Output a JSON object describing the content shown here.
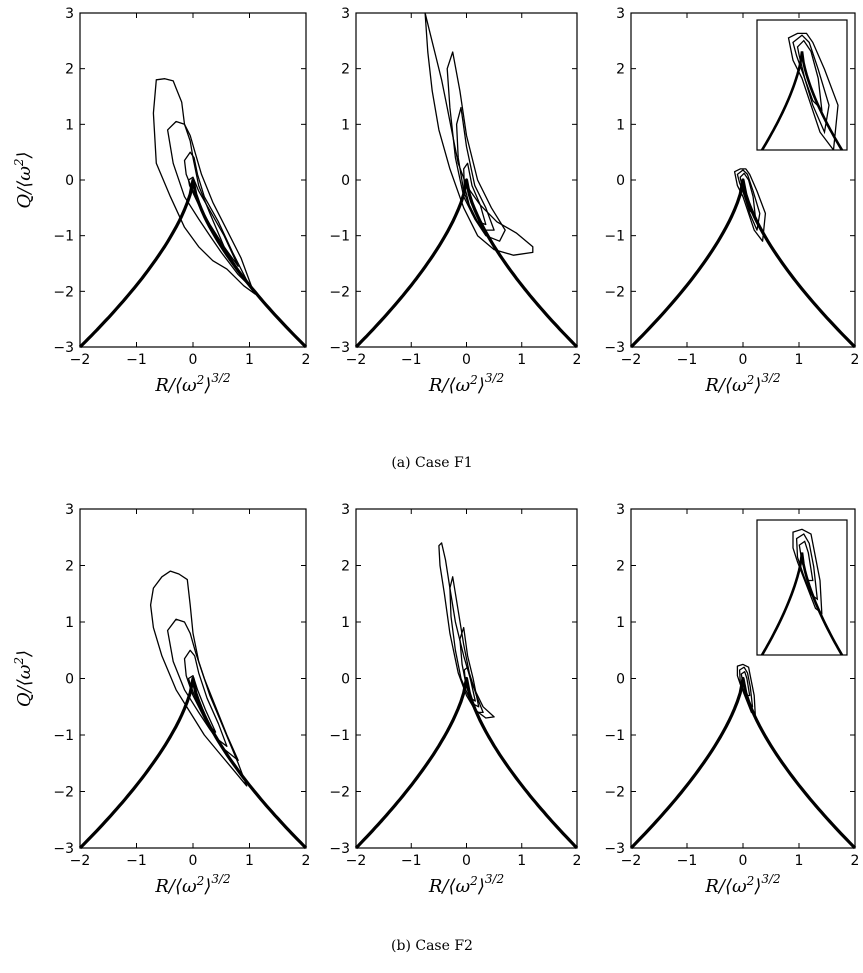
{
  "captions": {
    "a": "(a) Case F1",
    "b": "(b) Case F2"
  },
  "axes": {
    "xlabel_main": "R/⟨ω",
    "xlabel_sup": "2",
    "xlabel_close": "⟩",
    "xlabel_exp": "3/2",
    "ylabel_main": "Q/⟨ω",
    "ylabel_sup": "2",
    "ylabel_close": "⟩",
    "xlim": [
      -2,
      2
    ],
    "ylim": [
      -3,
      3
    ],
    "xticks": [
      "−2",
      "−1",
      "0",
      "1",
      "2"
    ],
    "yticks": [
      "3",
      "2",
      "1",
      "0",
      "−1",
      "−2",
      "−3"
    ]
  },
  "colors": {
    "line": "#000000",
    "background": "#ffffff"
  },
  "chart_data": [
    {
      "id": "a1",
      "type": "line",
      "curves": [
        {
          "kind": "vieillefosse",
          "x": [
            -2,
            0,
            2
          ],
          "y": [
            -3,
            0,
            -3
          ]
        },
        {
          "kind": "contour",
          "level": "outer",
          "x": [
            -0.65,
            -0.5,
            -0.35,
            -0.3,
            -0.2,
            -0.15,
            -0.05,
            0.0,
            0.1,
            0.3,
            0.55,
            0.85,
            1.1,
            0.9,
            0.6,
            0.35,
            0.1,
            -0.15,
            -0.4,
            -0.65,
            -0.7,
            -0.65
          ],
          "y": [
            1.8,
            1.82,
            1.78,
            1.65,
            1.4,
            1.0,
            0.7,
            0.4,
            -0.1,
            -0.6,
            -1.2,
            -1.7,
            -2.05,
            -1.9,
            -1.6,
            -1.45,
            -1.2,
            -0.85,
            -0.3,
            0.3,
            1.2,
            1.8
          ]
        },
        {
          "kind": "contour",
          "level": "middle",
          "x": [
            -0.45,
            -0.3,
            -0.15,
            -0.05,
            0.05,
            0.15,
            0.35,
            0.6,
            0.85,
            1.05,
            0.8,
            0.5,
            0.3,
            0.1,
            -0.15,
            -0.35,
            -0.45
          ],
          "y": [
            0.9,
            1.05,
            1.0,
            0.8,
            0.45,
            0.1,
            -0.4,
            -0.9,
            -1.4,
            -1.95,
            -1.7,
            -1.3,
            -1.0,
            -0.7,
            -0.3,
            0.3,
            0.9
          ]
        },
        {
          "kind": "contour",
          "level": "inner",
          "x": [
            -0.15,
            -0.05,
            0.02,
            0.08,
            0.2,
            0.45,
            0.7,
            1.0,
            0.75,
            0.45,
            0.2,
            0.0,
            -0.12,
            -0.15
          ],
          "y": [
            0.35,
            0.5,
            0.4,
            0.1,
            -0.3,
            -0.75,
            -1.3,
            -1.9,
            -1.55,
            -1.1,
            -0.65,
            -0.2,
            0.1,
            0.35
          ]
        },
        {
          "kind": "contour",
          "level": "core",
          "x": [
            -0.08,
            0.0,
            0.1,
            0.3,
            0.55,
            0.8,
            0.55,
            0.3,
            0.08,
            -0.06,
            -0.08
          ],
          "y": [
            0.0,
            0.05,
            -0.2,
            -0.55,
            -1.0,
            -1.55,
            -1.2,
            -0.8,
            -0.4,
            -0.1,
            0.0
          ]
        }
      ]
    },
    {
      "id": "a2",
      "type": "line",
      "curves": [
        {
          "kind": "vieillefosse",
          "x": [
            -2,
            0,
            2
          ],
          "y": [
            -3,
            0,
            -3
          ]
        },
        {
          "kind": "contour",
          "level": "outer",
          "x": [
            -0.75,
            -0.65,
            -0.55,
            -0.45,
            -0.35,
            -0.25,
            -0.15,
            0.0,
            0.25,
            0.55,
            0.9,
            1.2,
            1.2,
            0.85,
            0.5,
            0.2,
            -0.05,
            -0.3,
            -0.5,
            -0.62,
            -0.7,
            -0.75
          ],
          "y": [
            3.0,
            2.6,
            2.2,
            1.8,
            1.3,
            0.8,
            0.3,
            -0.1,
            -0.45,
            -0.75,
            -0.95,
            -1.2,
            -1.3,
            -1.35,
            -1.25,
            -1.0,
            -0.5,
            0.2,
            0.9,
            1.6,
            2.3,
            3.0
          ]
        },
        {
          "kind": "contour",
          "level": "middle",
          "x": [
            -0.35,
            -0.25,
            -0.12,
            0.0,
            0.2,
            0.45,
            0.7,
            0.6,
            0.35,
            0.15,
            -0.05,
            -0.2,
            -0.3,
            -0.35
          ],
          "y": [
            2.0,
            2.3,
            1.6,
            0.8,
            0.0,
            -0.5,
            -0.9,
            -1.1,
            -1.0,
            -0.7,
            -0.3,
            0.4,
            1.3,
            2.0
          ]
        },
        {
          "kind": "contour",
          "level": "inner",
          "x": [
            -0.18,
            -0.1,
            0.0,
            0.15,
            0.35,
            0.5,
            0.3,
            0.1,
            -0.05,
            -0.15,
            -0.18
          ],
          "y": [
            1.0,
            1.3,
            0.6,
            -0.1,
            -0.5,
            -0.9,
            -0.9,
            -0.6,
            -0.2,
            0.4,
            1.0
          ]
        },
        {
          "kind": "contour",
          "level": "core",
          "x": [
            -0.05,
            0.02,
            0.1,
            0.25,
            0.35,
            0.2,
            0.05,
            -0.04,
            -0.05
          ],
          "y": [
            0.2,
            0.3,
            -0.1,
            -0.45,
            -0.8,
            -0.75,
            -0.45,
            -0.1,
            0.2
          ]
        }
      ]
    },
    {
      "id": "a3",
      "type": "line",
      "inset": true,
      "curves": [
        {
          "kind": "vieillefosse",
          "x": [
            -2,
            0,
            2
          ],
          "y": [
            -3,
            0,
            -3
          ]
        },
        {
          "kind": "contour",
          "level": "outer",
          "x": [
            -0.15,
            -0.05,
            0.05,
            0.12,
            0.25,
            0.4,
            0.35,
            0.2,
            0.1,
            0.0,
            -0.1,
            -0.15
          ],
          "y": [
            0.15,
            0.2,
            0.2,
            0.1,
            -0.2,
            -0.6,
            -1.1,
            -0.9,
            -0.6,
            -0.3,
            -0.1,
            0.15
          ]
        },
        {
          "kind": "contour",
          "level": "middle",
          "x": [
            -0.1,
            0.0,
            0.08,
            0.18,
            0.3,
            0.25,
            0.12,
            0.03,
            -0.06,
            -0.1
          ],
          "y": [
            0.1,
            0.18,
            0.1,
            -0.2,
            -0.6,
            -0.9,
            -0.6,
            -0.3,
            -0.05,
            0.1
          ]
        },
        {
          "kind": "contour",
          "level": "inner",
          "x": [
            -0.05,
            0.02,
            0.1,
            0.18,
            0.22,
            0.12,
            0.03,
            -0.03,
            -0.05
          ],
          "y": [
            0.05,
            0.12,
            0.0,
            -0.3,
            -0.65,
            -0.55,
            -0.3,
            -0.05,
            0.05
          ]
        }
      ]
    },
    {
      "id": "b1",
      "type": "line",
      "curves": [
        {
          "kind": "vieillefosse",
          "x": [
            -2,
            0,
            2
          ],
          "y": [
            -3,
            0,
            -3
          ]
        },
        {
          "kind": "contour",
          "level": "outer",
          "x": [
            -0.7,
            -0.55,
            -0.4,
            -0.25,
            -0.1,
            -0.05,
            0.0,
            0.1,
            0.3,
            0.55,
            0.8,
            0.95,
            0.7,
            0.45,
            0.2,
            -0.05,
            -0.3,
            -0.55,
            -0.7,
            -0.75,
            -0.7
          ],
          "y": [
            1.6,
            1.8,
            1.9,
            1.85,
            1.75,
            1.3,
            0.8,
            0.3,
            -0.3,
            -0.9,
            -1.5,
            -1.9,
            -1.6,
            -1.3,
            -1.0,
            -0.6,
            -0.2,
            0.4,
            0.9,
            1.3,
            1.6
          ]
        },
        {
          "kind": "contour",
          "level": "middle",
          "x": [
            -0.45,
            -0.3,
            -0.15,
            -0.05,
            0.05,
            0.2,
            0.4,
            0.6,
            0.8,
            0.55,
            0.3,
            0.1,
            -0.15,
            -0.35,
            -0.45
          ],
          "y": [
            0.85,
            1.05,
            1.0,
            0.8,
            0.45,
            0.0,
            -0.5,
            -1.0,
            -1.45,
            -1.25,
            -0.9,
            -0.6,
            -0.2,
            0.3,
            0.85
          ]
        },
        {
          "kind": "contour",
          "level": "inner",
          "x": [
            -0.15,
            -0.05,
            0.03,
            0.1,
            0.25,
            0.45,
            0.6,
            0.4,
            0.2,
            0.0,
            -0.12,
            -0.15
          ],
          "y": [
            0.35,
            0.5,
            0.4,
            0.1,
            -0.35,
            -0.8,
            -1.2,
            -1.05,
            -0.7,
            -0.3,
            0.05,
            0.35
          ]
        },
        {
          "kind": "contour",
          "level": "core",
          "x": [
            -0.08,
            0.0,
            0.08,
            0.22,
            0.4,
            0.25,
            0.08,
            -0.05,
            -0.08
          ],
          "y": [
            0.0,
            0.05,
            -0.2,
            -0.55,
            -0.95,
            -0.8,
            -0.45,
            -0.1,
            0.0
          ]
        }
      ]
    },
    {
      "id": "b2",
      "type": "line",
      "curves": [
        {
          "kind": "vieillefosse",
          "x": [
            -2,
            0,
            2
          ],
          "y": [
            -3,
            0,
            -3
          ]
        },
        {
          "kind": "contour",
          "level": "outer",
          "x": [
            -0.5,
            -0.45,
            -0.38,
            -0.3,
            -0.2,
            -0.05,
            0.1,
            0.3,
            0.5,
            0.35,
            0.15,
            0.0,
            -0.15,
            -0.3,
            -0.4,
            -0.48,
            -0.5
          ],
          "y": [
            2.35,
            2.4,
            2.1,
            1.6,
            1.0,
            0.4,
            -0.1,
            -0.5,
            -0.68,
            -0.7,
            -0.55,
            -0.3,
            0.1,
            0.8,
            1.5,
            2.0,
            2.35
          ]
        },
        {
          "kind": "contour",
          "level": "middle",
          "x": [
            -0.3,
            -0.25,
            -0.15,
            -0.05,
            0.05,
            0.18,
            0.3,
            0.2,
            0.05,
            -0.1,
            -0.2,
            -0.28,
            -0.3
          ],
          "y": [
            1.6,
            1.8,
            1.2,
            0.6,
            0.1,
            -0.3,
            -0.6,
            -0.6,
            -0.35,
            0.0,
            0.5,
            1.1,
            1.6
          ]
        },
        {
          "kind": "contour",
          "level": "inner",
          "x": [
            -0.12,
            -0.05,
            0.02,
            0.12,
            0.22,
            0.12,
            0.0,
            -0.08,
            -0.12
          ],
          "y": [
            0.7,
            0.9,
            0.4,
            0.0,
            -0.5,
            -0.45,
            -0.15,
            0.25,
            0.7
          ]
        },
        {
          "kind": "contour",
          "level": "core",
          "x": [
            -0.04,
            0.02,
            0.08,
            0.16,
            0.08,
            -0.02,
            -0.04
          ],
          "y": [
            0.15,
            0.2,
            -0.05,
            -0.4,
            -0.35,
            -0.05,
            0.15
          ]
        }
      ]
    },
    {
      "id": "b3",
      "type": "line",
      "inset": true,
      "curves": [
        {
          "kind": "vieillefosse",
          "x": [
            -2,
            0,
            2
          ],
          "y": [
            -3,
            0,
            -3
          ]
        },
        {
          "kind": "contour",
          "level": "outer",
          "x": [
            -0.1,
            0.0,
            0.1,
            0.14,
            0.2,
            0.22,
            0.15,
            0.05,
            -0.05,
            -0.1,
            -0.1
          ],
          "y": [
            0.22,
            0.25,
            0.2,
            0.0,
            -0.3,
            -0.65,
            -0.6,
            -0.35,
            -0.1,
            0.05,
            0.22
          ]
        },
        {
          "kind": "contour",
          "level": "middle",
          "x": [
            -0.06,
            0.02,
            0.08,
            0.13,
            0.17,
            0.1,
            0.02,
            -0.05,
            -0.06
          ],
          "y": [
            0.15,
            0.2,
            0.1,
            -0.15,
            -0.5,
            -0.45,
            -0.25,
            -0.05,
            0.15
          ]
        },
        {
          "kind": "contour",
          "level": "inner",
          "x": [
            -0.03,
            0.03,
            0.07,
            0.12,
            0.07,
            0.0,
            -0.03
          ],
          "y": [
            0.08,
            0.12,
            0.0,
            -0.3,
            -0.3,
            -0.1,
            0.08
          ]
        }
      ]
    }
  ]
}
